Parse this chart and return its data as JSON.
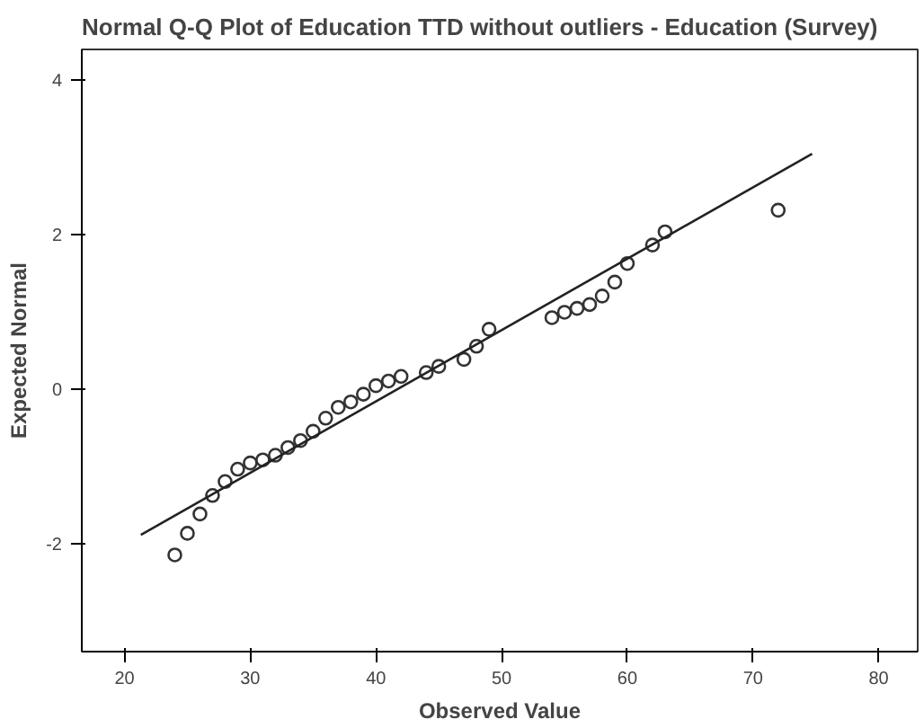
{
  "chart_data": {
    "type": "scatter",
    "title": "Normal Q-Q Plot of Education TTD without outliers - Education (Survey)",
    "xlabel": "Observed Value",
    "ylabel": "Expected Normal",
    "xlim": [
      16.6,
      83.1
    ],
    "ylim": [
      -3.4,
      4.39
    ],
    "xticks": [
      20,
      30,
      40,
      50,
      60,
      70,
      80
    ],
    "yticks": [
      -2,
      0,
      2,
      4
    ],
    "grid": false,
    "marker": "circle",
    "series": [
      {
        "color": "#333333",
        "x": [
          24,
          25,
          26,
          27,
          28,
          29,
          30,
          31,
          32,
          33,
          34,
          35,
          36,
          37,
          38,
          39,
          40,
          41,
          42,
          44,
          45,
          47,
          48,
          49,
          54,
          55,
          56,
          57,
          58,
          59,
          60,
          62,
          63,
          72
        ],
        "values": [
          -2.15,
          -1.87,
          -1.62,
          -1.38,
          -1.2,
          -1.04,
          -0.96,
          -0.92,
          -0.86,
          -0.76,
          -0.67,
          -0.55,
          -0.38,
          -0.24,
          -0.17,
          -0.07,
          0.04,
          0.1,
          0.16,
          0.21,
          0.29,
          0.38,
          0.55,
          0.77,
          0.92,
          0.99,
          1.04,
          1.09,
          1.2,
          1.38,
          1.62,
          1.86,
          2.03,
          2.31
        ]
      },
      {
        "type": "line",
        "color": "#222222",
        "x": [
          21.3,
          74.7
        ],
        "values": [
          -1.89,
          3.04
        ],
        "marker": "none",
        "line_style": "solid"
      }
    ]
  }
}
